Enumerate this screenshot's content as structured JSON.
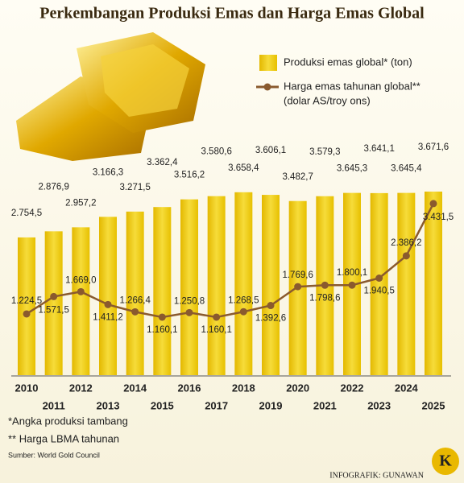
{
  "chart_data": {
    "type": "bar",
    "title": "Perkembangan Produksi Emas dan Harga Emas Global",
    "categories": [
      "2010",
      "2011",
      "2012",
      "2013",
      "2014",
      "2015",
      "2016",
      "2017",
      "2018",
      "2019",
      "2020",
      "2021",
      "2022",
      "2023",
      "2024",
      "2025"
    ],
    "series": [
      {
        "name": "Produksi emas global* (ton)",
        "type": "bar",
        "color": "#e8c410",
        "values": [
          2754.5,
          2876.9,
          2957.2,
          3166.3,
          3271.5,
          3362.4,
          3516.2,
          3580.6,
          3658.4,
          3606.1,
          3482.7,
          3579.3,
          3645.3,
          3641.1,
          3645.4,
          3671.6
        ],
        "value_labels": [
          "2.754,5",
          "2.876,9",
          "2.957,2",
          "3.166,3",
          "3.271,5",
          "3.362,4",
          "3.516,2",
          "3.580,6",
          "3.658,4",
          "3.606,1",
          "3.482,7",
          "3.579,3",
          "3.645,3",
          "3.641,1",
          "3.645,4",
          "3.671,6"
        ]
      },
      {
        "name": "Harga emas tahunan global**",
        "unit": "(dolar AS/troy ons)",
        "type": "line",
        "color": "#8a5a2e",
        "values": [
          1224.5,
          1571.5,
          1669.0,
          1411.2,
          1266.4,
          1160.1,
          1250.8,
          1160.1,
          1268.5,
          1392.6,
          1769.6,
          1798.6,
          1800.1,
          1940.5,
          2386.2,
          3431.5
        ],
        "value_labels": [
          "1.224,5",
          "1.571,5",
          "1.669,0",
          "1.411,2",
          "1.266,4",
          "1.160,1",
          "1.250,8",
          "1.160,1",
          "1.268,5",
          "1.392,6",
          "1.769,6",
          "1.798,6",
          "1.800,1",
          "1.940,5",
          "2.386,2",
          "3.431,5"
        ]
      }
    ],
    "notes": [
      "*Angka produksi tambang",
      "** Harga LBMA tahunan"
    ],
    "source": "Sumber: World Gold Council",
    "credit": "INFOGRAFIK: GUNAWAN",
    "logo": "K"
  }
}
